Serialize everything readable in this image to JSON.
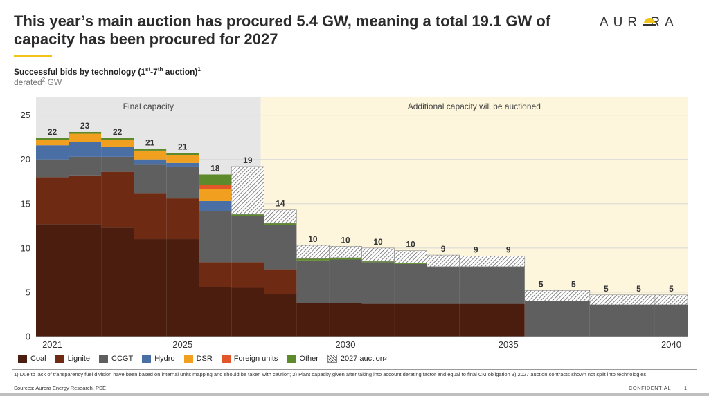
{
  "header": {
    "title": "This year’s main auction has procured 5.4 GW, meaning a total 19.1 GW of capacity has been procured for 2027",
    "logo_text": "AUR  RA"
  },
  "subtitle": {
    "text": "Successful bids by technology (1",
    "sup1": "st",
    "mid": "-7",
    "sup2": "th",
    "end": " auction)",
    "sup3": "1"
  },
  "unit": {
    "text": "derated",
    "sup": "2",
    "end": " GW"
  },
  "chart_data": {
    "type": "bar",
    "stacked": true,
    "ylim": [
      0,
      27
    ],
    "yticks": [
      0,
      5,
      10,
      15,
      20,
      25
    ],
    "xlim": [
      2020.6,
      2040.6
    ],
    "xticks": [
      2021,
      2025,
      2030,
      2035,
      2040
    ],
    "regions": [
      {
        "label": "Final capacity",
        "from": 2020.6,
        "to": 2027.5,
        "color": "#e6e6e6"
      },
      {
        "label": "Additional capacity will be auctioned",
        "from": 2027.5,
        "to": 2040.6,
        "color": "#fdf5dc"
      }
    ],
    "years": [
      2021,
      2022,
      2023,
      2024,
      2025,
      2026,
      2027,
      2028,
      2029,
      2030,
      2031,
      2032,
      2033,
      2034,
      2035,
      2036,
      2037,
      2038,
      2039,
      2040
    ],
    "totals": [
      "22",
      "23",
      "22",
      "21",
      "21",
      "18",
      "19",
      "14",
      "10",
      "10",
      "10",
      "10",
      "9",
      "9",
      "9",
      "5",
      "5",
      "5",
      "5",
      "5"
    ],
    "series": [
      {
        "name": "Coal",
        "color": "#4a1d0e",
        "values": [
          12.7,
          12.7,
          12.3,
          11.0,
          11.0,
          5.6,
          5.5,
          4.8,
          3.8,
          3.8,
          3.7,
          3.7,
          3.7,
          3.7,
          3.7,
          0,
          0,
          0,
          0,
          0
        ]
      },
      {
        "name": "Lignite",
        "color": "#6e2a13",
        "values": [
          5.3,
          5.5,
          6.3,
          5.2,
          4.6,
          2.8,
          2.9,
          2.8,
          0,
          0,
          0,
          0,
          0,
          0,
          0,
          0,
          0,
          0,
          0,
          0
        ]
      },
      {
        "name": "CCGT",
        "color": "#5f5f5f",
        "values": [
          2.0,
          2.1,
          1.7,
          3.2,
          3.6,
          5.8,
          5.2,
          5.0,
          4.8,
          4.9,
          4.7,
          4.5,
          4.1,
          4.1,
          4.1,
          4.0,
          4.0,
          3.6,
          3.6,
          3.6
        ]
      },
      {
        "name": "Hydro",
        "color": "#4a6fa5",
        "values": [
          1.6,
          1.7,
          1.1,
          0.6,
          0.4,
          1.1,
          0,
          0,
          0,
          0,
          0,
          0,
          0,
          0,
          0,
          0,
          0,
          0,
          0,
          0
        ]
      },
      {
        "name": "DSR",
        "color": "#f0a01e",
        "values": [
          0.6,
          0.9,
          0.8,
          1.0,
          0.9,
          1.4,
          0,
          0,
          0,
          0,
          0,
          0,
          0,
          0,
          0,
          0,
          0,
          0,
          0,
          0
        ]
      },
      {
        "name": "Foreign units",
        "color": "#e2572a",
        "values": [
          0,
          0,
          0,
          0,
          0,
          0.4,
          0,
          0,
          0,
          0,
          0,
          0,
          0,
          0,
          0,
          0,
          0,
          0,
          0,
          0
        ]
      },
      {
        "name": "Other",
        "color": "#5d8a2b",
        "values": [
          0.2,
          0.2,
          0.2,
          0.2,
          0.2,
          1.2,
          0.2,
          0.2,
          0.2,
          0.2,
          0.1,
          0.1,
          0.1,
          0.1,
          0.1,
          0,
          0,
          0,
          0,
          0
        ]
      },
      {
        "name": "2027 auction",
        "color": "hatch",
        "values": [
          0,
          0,
          0,
          0,
          0,
          0,
          5.4,
          1.5,
          1.5,
          1.3,
          1.5,
          1.4,
          1.3,
          1.2,
          1.2,
          1.2,
          1.2,
          1.1,
          1.1,
          1.1
        ]
      }
    ]
  },
  "legend": {
    "items": [
      {
        "label": "Coal",
        "color": "#4a1d0e"
      },
      {
        "label": "Lignite",
        "color": "#6e2a13"
      },
      {
        "label": "CCGT",
        "color": "#5f5f5f"
      },
      {
        "label": "Hydro",
        "color": "#4a6fa5"
      },
      {
        "label": "DSR",
        "color": "#f0a01e"
      },
      {
        "label": "Foreign units",
        "color": "#e2572a"
      },
      {
        "label": "Other",
        "color": "#5d8a2b"
      }
    ],
    "auction_label": "2027 auction",
    "auction_sup": "3"
  },
  "footer": {
    "footnote": "1) Due to lack of transparency fuel division have been based on internal units mapping and should be taken with caution; 2) Plant capacity given after taking into account derating factor and equal to final CM obligation 3) 2027 auction contracts shown not split into technologies",
    "sources": "Sources: Aurora Energy Research, PSE",
    "confidential": "CONFIDENTIAL",
    "page_number": "1"
  }
}
